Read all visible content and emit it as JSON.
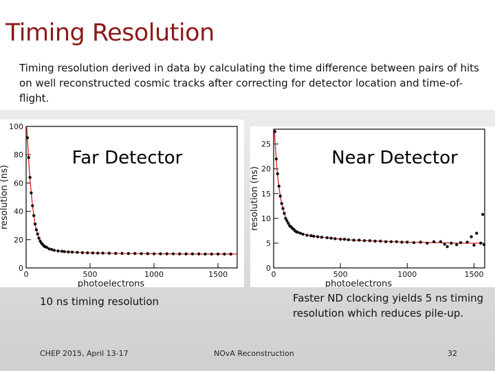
{
  "slide": {
    "title": "Timing Resolution",
    "subtitle": "Timing resolution derived in data by calculating the time difference between pairs of hits on well reconstructed cosmic tracks after correcting for detector location and time-of-flight.",
    "note_far": "10 ns timing resolution",
    "note_near": "Faster ND clocking yields 5 ns timing resolution which reduces pile-up.",
    "footer_left": "CHEP 2015, April 13-17",
    "footer_center": "NOvA Reconstruction",
    "footer_right": "32"
  },
  "colors": {
    "title": "#8b1a1a",
    "fit_line": "#e02020",
    "markers": "#111111"
  },
  "chart_data": [
    {
      "type": "scatter",
      "overlay_label": "Far Detector",
      "xlabel": "photoelectrons",
      "ylabel": "resolution (ns)",
      "xlim": [
        0,
        1650
      ],
      "ylim": [
        0,
        100
      ],
      "xticks": [
        0,
        500,
        1000,
        1500
      ],
      "yticks": [
        0,
        20,
        40,
        60,
        80,
        100
      ],
      "series": [
        {
          "points": [
            [
              10,
              92
            ],
            [
              20,
              78
            ],
            [
              30,
              64
            ],
            [
              40,
              53
            ],
            [
              50,
              44
            ],
            [
              60,
              37
            ],
            [
              70,
              31
            ],
            [
              80,
              27
            ],
            [
              90,
              24
            ],
            [
              100,
              21
            ],
            [
              110,
              19
            ],
            [
              120,
              17.5
            ],
            [
              130,
              16.5
            ],
            [
              140,
              15.5
            ],
            [
              150,
              15
            ],
            [
              160,
              14.5
            ],
            [
              180,
              13.5
            ],
            [
              200,
              13
            ],
            [
              220,
              12.5
            ],
            [
              250,
              12
            ],
            [
              280,
              11.8
            ],
            [
              300,
              11.5
            ],
            [
              330,
              11.3
            ],
            [
              360,
              11.2
            ],
            [
              400,
              11
            ],
            [
              440,
              10.8
            ],
            [
              480,
              10.7
            ],
            [
              520,
              10.6
            ],
            [
              560,
              10.5
            ],
            [
              600,
              10.5
            ],
            [
              650,
              10.4
            ],
            [
              700,
              10.3
            ],
            [
              750,
              10.3
            ],
            [
              800,
              10.2
            ],
            [
              850,
              10.2
            ],
            [
              900,
              10.1
            ],
            [
              950,
              10.1
            ],
            [
              1000,
              10
            ],
            [
              1050,
              10
            ],
            [
              1100,
              10
            ],
            [
              1150,
              10
            ],
            [
              1200,
              9.9
            ],
            [
              1250,
              9.9
            ],
            [
              1300,
              9.9
            ],
            [
              1350,
              9.9
            ],
            [
              1400,
              9.8
            ],
            [
              1450,
              9.8
            ],
            [
              1500,
              9.8
            ],
            [
              1550,
              9.8
            ],
            [
              1600,
              9.8
            ]
          ],
          "fit": [
            [
              5,
              100
            ],
            [
              10,
              92
            ],
            [
              20,
              76
            ],
            [
              30,
              63
            ],
            [
              40,
              53
            ],
            [
              50,
              44
            ],
            [
              60,
              37
            ],
            [
              70,
              31
            ],
            [
              80,
              27
            ],
            [
              90,
              24
            ],
            [
              100,
              21
            ],
            [
              120,
              17.5
            ],
            [
              140,
              15.5
            ],
            [
              160,
              14.3
            ],
            [
              180,
              13.5
            ],
            [
              200,
              13
            ],
            [
              250,
              12
            ],
            [
              300,
              11.5
            ],
            [
              400,
              11
            ],
            [
              500,
              10.7
            ],
            [
              600,
              10.5
            ],
            [
              800,
              10.2
            ],
            [
              1000,
              10
            ],
            [
              1200,
              9.9
            ],
            [
              1400,
              9.8
            ],
            [
              1650,
              9.8
            ]
          ]
        }
      ]
    },
    {
      "type": "scatter",
      "overlay_label": "Near Detector",
      "xlabel": "photoelectrons",
      "ylabel": "resolution (ns)",
      "xlim": [
        0,
        1580
      ],
      "ylim": [
        0,
        28
      ],
      "xticks": [
        0,
        500,
        1000,
        1500
      ],
      "yticks": [
        0,
        5,
        10,
        15,
        20,
        25
      ],
      "series": [
        {
          "points": [
            [
              10,
              27.5
            ],
            [
              20,
              22
            ],
            [
              30,
              19
            ],
            [
              40,
              16.5
            ],
            [
              50,
              14.5
            ],
            [
              60,
              13
            ],
            [
              70,
              12
            ],
            [
              80,
              11
            ],
            [
              90,
              10
            ],
            [
              100,
              9.5
            ],
            [
              110,
              9
            ],
            [
              120,
              8.5
            ],
            [
              130,
              8.3
            ],
            [
              140,
              8
            ],
            [
              150,
              7.8
            ],
            [
              160,
              7.5
            ],
            [
              170,
              7.3
            ],
            [
              180,
              7.2
            ],
            [
              200,
              7
            ],
            [
              220,
              6.8
            ],
            [
              250,
              6.6
            ],
            [
              280,
              6.5
            ],
            [
              300,
              6.4
            ],
            [
              330,
              6.3
            ],
            [
              360,
              6.2
            ],
            [
              400,
              6.1
            ],
            [
              430,
              6
            ],
            [
              460,
              5.9
            ],
            [
              500,
              5.8
            ],
            [
              530,
              5.8
            ],
            [
              560,
              5.7
            ],
            [
              600,
              5.6
            ],
            [
              640,
              5.6
            ],
            [
              680,
              5.5
            ],
            [
              720,
              5.5
            ],
            [
              760,
              5.4
            ],
            [
              800,
              5.4
            ],
            [
              840,
              5.3
            ],
            [
              880,
              5.3
            ],
            [
              920,
              5.3
            ],
            [
              960,
              5.2
            ],
            [
              1000,
              5.2
            ],
            [
              1050,
              5.1
            ],
            [
              1100,
              5.2
            ],
            [
              1150,
              5
            ],
            [
              1200,
              5.3
            ],
            [
              1250,
              5.3
            ],
            [
              1280,
              4.8
            ],
            [
              1300,
              4.3
            ],
            [
              1330,
              5
            ],
            [
              1370,
              4.7
            ],
            [
              1400,
              5.1
            ],
            [
              1450,
              5.2
            ],
            [
              1480,
              6.3
            ],
            [
              1500,
              4.6
            ],
            [
              1520,
              7
            ],
            [
              1550,
              5
            ],
            [
              1565,
              10.8
            ],
            [
              1575,
              4.7
            ]
          ],
          "fit": [
            [
              5,
              28
            ],
            [
              10,
              26
            ],
            [
              20,
              21.5
            ],
            [
              30,
              18.5
            ],
            [
              40,
              16.2
            ],
            [
              50,
              14.5
            ],
            [
              60,
              13
            ],
            [
              70,
              12
            ],
            [
              80,
              11
            ],
            [
              90,
              10.2
            ],
            [
              100,
              9.6
            ],
            [
              120,
              8.7
            ],
            [
              140,
              8
            ],
            [
              160,
              7.5
            ],
            [
              180,
              7.2
            ],
            [
              200,
              7
            ],
            [
              250,
              6.6
            ],
            [
              300,
              6.4
            ],
            [
              400,
              6.1
            ],
            [
              500,
              5.8
            ],
            [
              600,
              5.6
            ],
            [
              800,
              5.4
            ],
            [
              1000,
              5.2
            ],
            [
              1200,
              5.1
            ],
            [
              1400,
              5
            ],
            [
              1580,
              5
            ]
          ]
        }
      ]
    }
  ]
}
